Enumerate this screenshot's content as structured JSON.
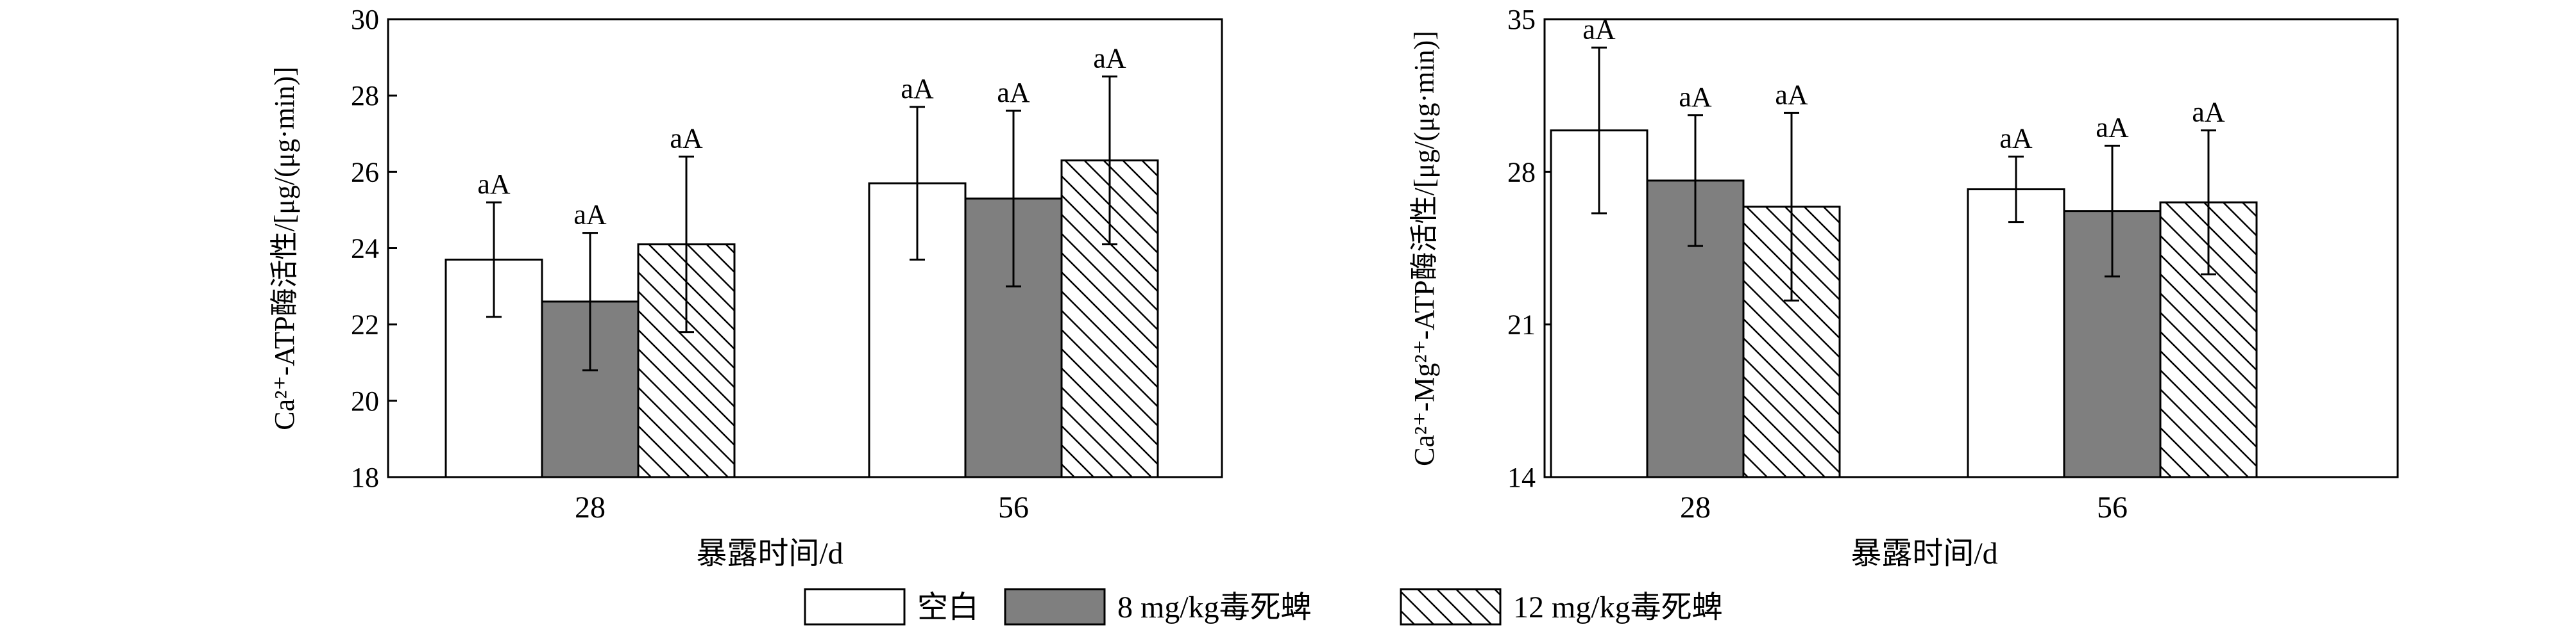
{
  "legend": {
    "items": [
      {
        "label": "空白",
        "pattern": "white"
      },
      {
        "label": "8 mg/kg毒死蜱",
        "pattern": "gray"
      },
      {
        "label": "12 mg/kg毒死蜱",
        "pattern": "hatch"
      }
    ]
  },
  "colors": {
    "white": "#ffffff",
    "gray": "#7f7f7f",
    "hatch": "#000000"
  },
  "chart_data": [
    {
      "type": "bar",
      "xlabel": "暴露时间/d",
      "ylabel": "Ca²⁺-ATP酶活性/[μg/(μg·min)]",
      "ylim": [
        18,
        30
      ],
      "yticks": [
        18,
        20,
        22,
        24,
        26,
        28,
        30
      ],
      "categories": [
        "28",
        "56"
      ],
      "series": [
        {
          "name": "空白",
          "values": [
            23.7,
            25.7
          ],
          "errors": [
            1.5,
            2.0
          ],
          "labels": [
            "aA",
            "aA"
          ]
        },
        {
          "name": "8 mg/kg毒死蜱",
          "values": [
            22.6,
            25.3
          ],
          "errors": [
            1.8,
            2.3
          ],
          "labels": [
            "aA",
            "aA"
          ]
        },
        {
          "name": "12 mg/kg毒死蜱",
          "values": [
            24.1,
            26.3
          ],
          "errors": [
            2.3,
            2.2
          ],
          "labels": [
            "aA",
            "aA"
          ]
        }
      ]
    },
    {
      "type": "bar",
      "xlabel": "暴露时间/d",
      "ylabel": "Ca²⁺-Mg²⁺-ATP酶活性/[μg/(μg·min)]",
      "ylim": [
        14,
        35
      ],
      "yticks": [
        14,
        21,
        28,
        35
      ],
      "categories": [
        "28",
        "56"
      ],
      "series": [
        {
          "name": "空白",
          "values": [
            29.9,
            27.2
          ],
          "errors": [
            3.8,
            1.5
          ],
          "labels": [
            "aA",
            "aA"
          ]
        },
        {
          "name": "8 mg/kg毒死蜱",
          "values": [
            27.6,
            26.2
          ],
          "errors": [
            3.0,
            3.0
          ],
          "labels": [
            "aA",
            "aA"
          ]
        },
        {
          "name": "12 mg/kg毒死蜱",
          "values": [
            26.4,
            26.6
          ],
          "errors": [
            4.3,
            3.3
          ],
          "labels": [
            "aA",
            "aA"
          ]
        }
      ]
    }
  ]
}
